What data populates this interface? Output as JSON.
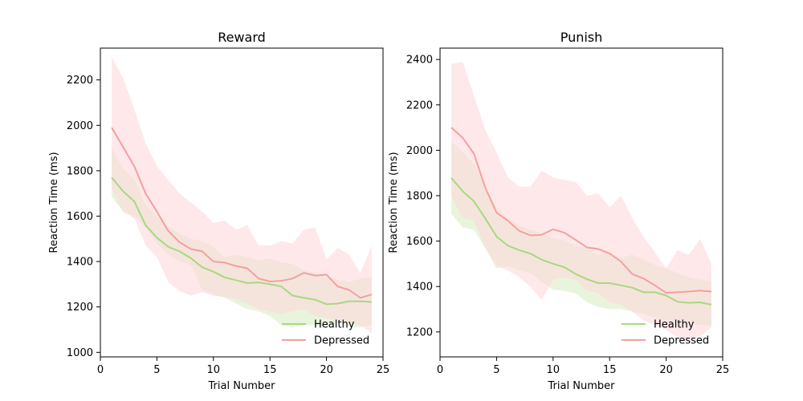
{
  "chart_data": [
    {
      "type": "line",
      "title": "Reward",
      "xlabel": "Trial Number",
      "ylabel": "Reaction Time (ms)",
      "xlim": [
        0,
        25
      ],
      "ylim": [
        980,
        2340
      ],
      "xticks": [
        0,
        5,
        10,
        15,
        20,
        25
      ],
      "yticks": [
        1000,
        1200,
        1400,
        1600,
        1800,
        2000,
        2200
      ],
      "x": [
        1,
        2,
        3,
        4,
        5,
        6,
        7,
        8,
        9,
        10,
        11,
        12,
        13,
        14,
        15,
        16,
        17,
        18,
        19,
        20,
        21,
        22,
        23,
        24
      ],
      "legend_position": "lower-right",
      "grid": false,
      "series": [
        {
          "name": "Healthy",
          "color": "#a8d880",
          "band_color": "#d8efc4",
          "values": [
            1770,
            1710,
            1665,
            1560,
            1505,
            1465,
            1445,
            1415,
            1375,
            1355,
            1330,
            1318,
            1305,
            1308,
            1300,
            1290,
            1250,
            1240,
            1232,
            1212,
            1215,
            1225,
            1225,
            1222
          ],
          "lower": [
            1685,
            1620,
            1600,
            1550,
            1480,
            1430,
            1400,
            1385,
            1275,
            1255,
            1240,
            1215,
            1190,
            1180,
            1160,
            1120,
            1110,
            1120,
            1120,
            1110,
            1140,
            1115,
            1110,
            1120
          ],
          "upper": [
            1900,
            1810,
            1765,
            1650,
            1600,
            1555,
            1525,
            1500,
            1490,
            1465,
            1420,
            1430,
            1420,
            1405,
            1415,
            1395,
            1390,
            1360,
            1350,
            1330,
            1320,
            1310,
            1325,
            1330
          ]
        },
        {
          "name": "Depressed",
          "color": "#f4a0a0",
          "band_color": "#fdd8dc",
          "values": [
            1990,
            1905,
            1820,
            1700,
            1620,
            1535,
            1485,
            1455,
            1445,
            1400,
            1395,
            1380,
            1370,
            1325,
            1312,
            1315,
            1325,
            1350,
            1338,
            1342,
            1290,
            1275,
            1240,
            1255
          ],
          "lower": [
            1720,
            1620,
            1590,
            1470,
            1420,
            1310,
            1270,
            1250,
            1265,
            1250,
            1245,
            1235,
            1215,
            1190,
            1180,
            1170,
            1180,
            1190,
            1160,
            1150,
            1140,
            1130,
            1120,
            1085
          ],
          "upper": [
            2300,
            2210,
            2070,
            1920,
            1820,
            1760,
            1700,
            1660,
            1620,
            1570,
            1580,
            1540,
            1560,
            1470,
            1470,
            1490,
            1480,
            1540,
            1550,
            1410,
            1460,
            1430,
            1350,
            1470
          ]
        }
      ]
    },
    {
      "type": "line",
      "title": "Punish",
      "xlabel": "Trial Number",
      "ylabel": "Reaction Time (ms)",
      "xlim": [
        0,
        25
      ],
      "ylim": [
        1090,
        2450
      ],
      "xticks": [
        0,
        5,
        10,
        15,
        20,
        25
      ],
      "yticks": [
        1200,
        1400,
        1600,
        1800,
        2000,
        2200,
        2400
      ],
      "x": [
        1,
        2,
        3,
        4,
        5,
        6,
        7,
        8,
        9,
        10,
        11,
        12,
        13,
        14,
        15,
        16,
        17,
        18,
        19,
        20,
        21,
        22,
        23,
        24
      ],
      "legend_position": "lower-right",
      "grid": false,
      "series": [
        {
          "name": "Healthy",
          "color": "#a8d880",
          "band_color": "#d8efc4",
          "values": [
            1878,
            1820,
            1775,
            1700,
            1620,
            1580,
            1560,
            1545,
            1518,
            1500,
            1485,
            1455,
            1432,
            1415,
            1415,
            1405,
            1395,
            1375,
            1375,
            1360,
            1333,
            1328,
            1330,
            1320
          ],
          "lower": [
            1720,
            1660,
            1650,
            1570,
            1480,
            1490,
            1470,
            1460,
            1420,
            1385,
            1380,
            1370,
            1330,
            1310,
            1300,
            1300,
            1290,
            1280,
            1260,
            1250,
            1250,
            1240,
            1230,
            1230
          ],
          "upper": [
            2040,
            1990,
            1940,
            1840,
            1750,
            1700,
            1670,
            1650,
            1635,
            1615,
            1605,
            1580,
            1570,
            1540,
            1550,
            1525,
            1540,
            1520,
            1495,
            1480,
            1460,
            1440,
            1430,
            1425
          ]
        },
        {
          "name": "Depressed",
          "color": "#f4a0a0",
          "band_color": "#fdd8dc",
          "values": [
            2100,
            2055,
            1985,
            1835,
            1725,
            1690,
            1645,
            1625,
            1628,
            1652,
            1637,
            1605,
            1572,
            1565,
            1545,
            1510,
            1455,
            1435,
            1405,
            1372,
            1375,
            1378,
            1382,
            1378
          ],
          "lower": [
            1800,
            1700,
            1690,
            1570,
            1490,
            1470,
            1440,
            1400,
            1340,
            1430,
            1440,
            1430,
            1380,
            1370,
            1330,
            1320,
            1290,
            1250,
            1230,
            1210,
            1175,
            1160,
            1180,
            1220
          ],
          "upper": [
            2380,
            2390,
            2240,
            2090,
            1990,
            1880,
            1840,
            1840,
            1910,
            1880,
            1870,
            1860,
            1800,
            1810,
            1750,
            1800,
            1700,
            1620,
            1550,
            1480,
            1560,
            1540,
            1610,
            1500
          ]
        }
      ]
    }
  ]
}
